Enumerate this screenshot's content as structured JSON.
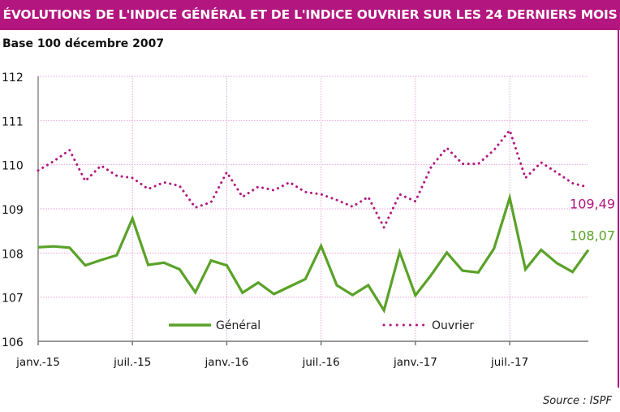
{
  "header": {
    "title": "ÉVOLUTIONS DE L'INDICE GÉNÉRAL ET DE L'INDICE OUVRIER SUR LES 24 DERNIERS MOIS",
    "subtitle": "Base 100 décembre 2007"
  },
  "footer": {
    "source": "Source : ISPF"
  },
  "chart_data": {
    "type": "line",
    "title": "ÉVOLUTIONS DE L'INDICE GÉNÉRAL ET DE L'INDICE OUVRIER SUR LES 24 DERNIERS MOIS",
    "ylim": [
      106,
      112
    ],
    "yticks": [
      "106",
      "107",
      "108",
      "109",
      "110",
      "111",
      "112"
    ],
    "xticks": [
      "janv.-15",
      "juil.-15",
      "janv.-16",
      "juil.-16",
      "janv.-17",
      "juil.-17"
    ],
    "grid": true,
    "legend_placement": "bottom",
    "x_months": 36,
    "series": [
      {
        "name": "Général",
        "color": "#5aa228",
        "style": "solid",
        "end_label": "108,07",
        "values": [
          108.13,
          108.15,
          108.12,
          107.72,
          107.84,
          107.95,
          108.78,
          107.73,
          107.78,
          107.63,
          107.11,
          107.83,
          107.72,
          107.1,
          107.33,
          107.07,
          107.24,
          107.41,
          108.16,
          107.27,
          107.05,
          107.27,
          106.7,
          108.02,
          107.04,
          107.5,
          108.01,
          107.6,
          107.56,
          108.1,
          109.25,
          107.63,
          108.07,
          107.77,
          107.57,
          108.07
        ]
      },
      {
        "name": "Ouvrier",
        "color": "#b3167f",
        "style": "dotted",
        "end_label": "109,49",
        "values": [
          109.87,
          110.08,
          110.33,
          109.63,
          109.98,
          109.75,
          109.7,
          109.45,
          109.6,
          109.52,
          109.03,
          109.15,
          109.83,
          109.27,
          109.5,
          109.42,
          109.6,
          109.38,
          109.33,
          109.2,
          109.05,
          109.27,
          108.58,
          109.33,
          109.17,
          109.95,
          110.38,
          110.02,
          110.02,
          110.33,
          110.78,
          109.7,
          110.05,
          109.82,
          109.58,
          109.49
        ]
      }
    ]
  }
}
